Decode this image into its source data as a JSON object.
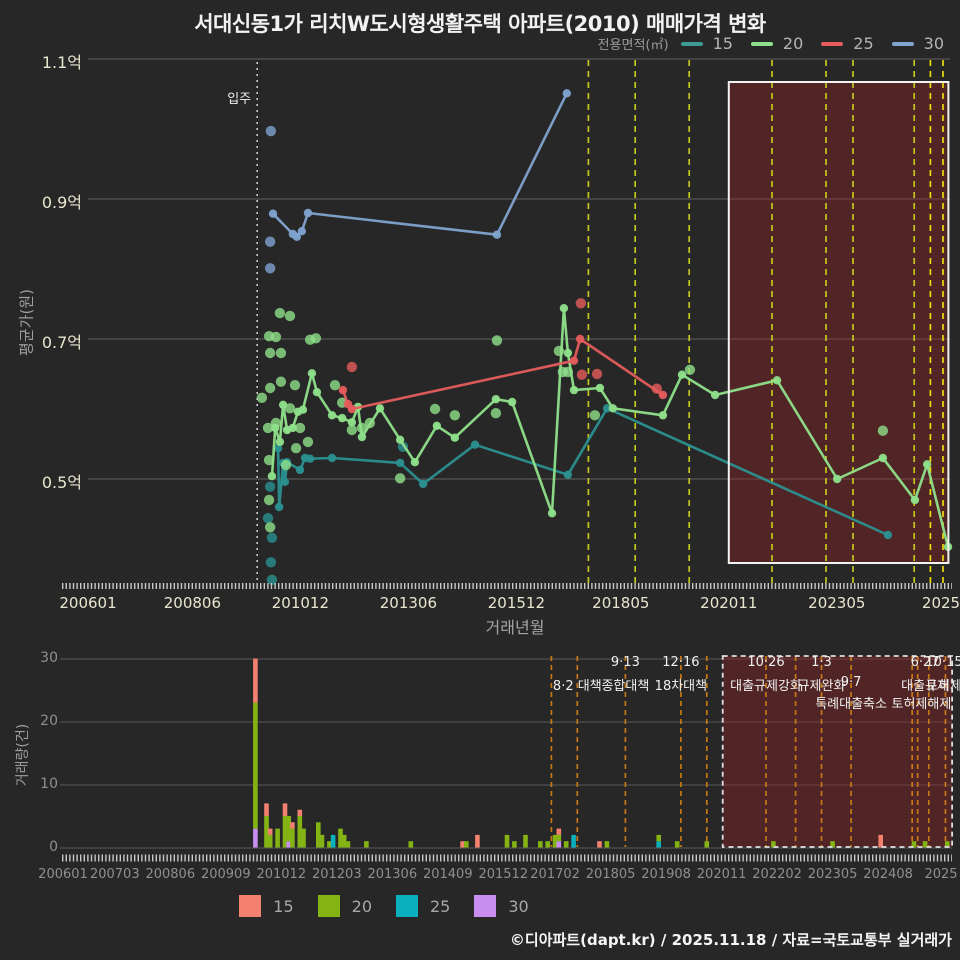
{
  "title": "서대신동1가 리치W도시형생활주택 아파트(2010) 매매가격 변화",
  "footer": "©디아파트(dapt.kr) / 2025.11.18 / 자료=국토교통부 실거래가",
  "legend_top": {
    "label": "전용면적(㎡)",
    "items": [
      {
        "label": "15",
        "color": "#3f9a95"
      },
      {
        "label": "20",
        "color": "#8fe08a"
      },
      {
        "label": "25",
        "color": "#e65c5c"
      },
      {
        "label": "30",
        "color": "#80a3cf"
      }
    ]
  },
  "legend_bottom": {
    "items": [
      {
        "label": "15",
        "color": "#f4806f"
      },
      {
        "label": "20",
        "color": "#84b414"
      },
      {
        "label": "25",
        "color": "#0ab0bd"
      },
      {
        "label": "30",
        "color": "#c78ef0"
      }
    ]
  },
  "chart_data": [
    {
      "type": "line",
      "title": "서대신동1가 리치W도시형생활주택 아파트(2010) 매매가격 변화",
      "xlabel": "거래년월",
      "ylabel": "평균가(원)",
      "x_unit": "months since 2006-01",
      "ylim": [
        0.38,
        1.12
      ],
      "grid": true,
      "y_ticks": [
        {
          "label": "1.1억",
          "v": 1.1
        },
        {
          "label": "0.9억",
          "v": 0.9
        },
        {
          "label": "0.7억",
          "v": 0.7
        },
        {
          "label": "0.5억",
          "v": 0.5
        }
      ],
      "x_ticks": [
        {
          "label": "200601",
          "m": 0
        },
        {
          "label": "200806",
          "m": 29
        },
        {
          "label": "201012",
          "m": 59
        },
        {
          "label": "201306",
          "m": 89
        },
        {
          "label": "201512",
          "m": 119
        },
        {
          "label": "201805",
          "m": 148
        },
        {
          "label": "202011",
          "m": 178
        },
        {
          "label": "202305",
          "m": 208
        },
        {
          "label": "2025",
          "m": 238
        }
      ],
      "move_in": {
        "label": "입주",
        "m": 47
      },
      "policy_lines": [
        {
          "m": 139,
          "bright": false
        },
        {
          "m": 152,
          "bright": false
        },
        {
          "m": 167,
          "bright": false
        },
        {
          "m": 190,
          "bright": false
        },
        {
          "m": 205,
          "bright": false
        },
        {
          "m": 212.5,
          "bright": false
        },
        {
          "m": 229.5,
          "bright": false
        },
        {
          "m": 234,
          "bright": true
        },
        {
          "m": 237.5,
          "bright": true
        }
      ],
      "highlight_box": {
        "m0": 178,
        "m1": 239
      },
      "series": [
        {
          "name": "30",
          "color": "#80a3cf",
          "line": [
            [
              51.4,
              0.879
            ],
            [
              56.9,
              0.85
            ],
            [
              58,
              0.846
            ],
            [
              59.4,
              0.854
            ],
            [
              61.1,
              0.88
            ],
            [
              113.6,
              0.849
            ],
            [
              133,
              1.051
            ]
          ],
          "scatter": [
            [
              50.8,
              0.997
            ],
            [
              50.6,
              0.839
            ],
            [
              50.6,
              0.801
            ]
          ]
        },
        {
          "name": "15",
          "color": "#2b9090",
          "line": [
            [
              52.8,
              0.544
            ],
            [
              53.1,
              0.46
            ],
            [
              54.2,
              0.523
            ],
            [
              54.7,
              0.496
            ],
            [
              55.3,
              0.524
            ],
            [
              58.9,
              0.513
            ],
            [
              60.3,
              0.53
            ],
            [
              61.7,
              0.529
            ],
            [
              67.8,
              0.53
            ],
            [
              86.7,
              0.523
            ],
            [
              93.1,
              0.493
            ],
            [
              107.5,
              0.549
            ],
            [
              133.3,
              0.506
            ],
            [
              144.2,
              0.601
            ],
            [
              222.2,
              0.42
            ]
          ],
          "scatter": [
            [
              50,
              0.444
            ],
            [
              50.6,
              0.489
            ],
            [
              51.1,
              0.416
            ],
            [
              50.8,
              0.381
            ],
            [
              51.1,
              0.356
            ],
            [
              87.5,
              0.546
            ]
          ]
        },
        {
          "name": "20",
          "color": "#8fe08a",
          "line": [
            [
              51.1,
              0.504
            ],
            [
              52,
              0.573
            ],
            [
              53.3,
              0.553
            ],
            [
              54.2,
              0.606
            ],
            [
              55.3,
              0.57
            ],
            [
              56.9,
              0.573
            ],
            [
              58.3,
              0.596
            ],
            [
              59.7,
              0.599
            ],
            [
              62.2,
              0.651
            ],
            [
              63.6,
              0.624
            ],
            [
              67.8,
              0.591
            ],
            [
              70.6,
              0.587
            ],
            [
              73.3,
              0.581
            ],
            [
              75,
              0.603
            ],
            [
              76.1,
              0.56
            ],
            [
              81.1,
              0.601
            ],
            [
              86.7,
              0.556
            ],
            [
              90.8,
              0.524
            ],
            [
              96.9,
              0.576
            ],
            [
              101.9,
              0.559
            ],
            [
              113.3,
              0.614
            ],
            [
              117.8,
              0.61
            ],
            [
              128.9,
              0.451
            ],
            [
              132.2,
              0.744
            ],
            [
              133.3,
              0.68
            ],
            [
              135,
              0.627
            ],
            [
              142.2,
              0.63
            ],
            [
              145.8,
              0.601
            ],
            [
              159.7,
              0.591
            ],
            [
              165,
              0.649
            ],
            [
              174.2,
              0.62
            ],
            [
              191.4,
              0.641
            ],
            [
              208.1,
              0.5
            ],
            [
              220.8,
              0.53
            ],
            [
              229.7,
              0.47
            ],
            [
              233.1,
              0.521
            ],
            [
              238.9,
              0.403
            ]
          ],
          "scatter": [
            [
              48.3,
              0.616
            ],
            [
              50,
              0.573
            ],
            [
              50.3,
              0.704
            ],
            [
              52.2,
              0.703
            ],
            [
              53.3,
              0.737
            ],
            [
              56.1,
              0.733
            ],
            [
              50.6,
              0.68
            ],
            [
              53.6,
              0.68
            ],
            [
              61.7,
              0.699
            ],
            [
              63.3,
              0.701
            ],
            [
              50.6,
              0.63
            ],
            [
              53.6,
              0.639
            ],
            [
              57.5,
              0.634
            ],
            [
              56.1,
              0.601
            ],
            [
              58.9,
              0.573
            ],
            [
              61.1,
              0.553
            ],
            [
              57.8,
              0.544
            ],
            [
              52.2,
              0.58
            ],
            [
              55,
              0.52
            ],
            [
              50.3,
              0.527
            ],
            [
              50.3,
              0.47
            ],
            [
              50.6,
              0.431
            ],
            [
              68.6,
              0.634
            ],
            [
              70.6,
              0.609
            ],
            [
              73.3,
              0.57
            ],
            [
              76.1,
              0.573
            ],
            [
              78.3,
              0.58
            ],
            [
              86.7,
              0.501
            ],
            [
              96.4,
              0.6
            ],
            [
              101.9,
              0.591
            ],
            [
              113.3,
              0.594
            ],
            [
              113.6,
              0.698
            ],
            [
              130.8,
              0.683
            ],
            [
              131.9,
              0.653
            ],
            [
              133.3,
              0.653
            ],
            [
              140.8,
              0.591
            ],
            [
              167.2,
              0.656
            ],
            [
              220.8,
              0.569
            ]
          ]
        },
        {
          "name": "25",
          "color": "#e65c5c",
          "line": [
            [
              70.8,
              0.627
            ],
            [
              72.2,
              0.607
            ],
            [
              73.3,
              0.6
            ],
            [
              135,
              0.669
            ],
            [
              136.7,
              0.7
            ],
            [
              159.7,
              0.62
            ]
          ],
          "scatter": [
            [
              73.3,
              0.66
            ],
            [
              136.9,
              0.751
            ],
            [
              137.2,
              0.649
            ],
            [
              141.4,
              0.65
            ],
            [
              158,
              0.629
            ]
          ]
        }
      ]
    },
    {
      "type": "bar",
      "ylabel": "거래량(건)",
      "ylim": [
        0,
        30
      ],
      "y_ticks": [
        {
          "label": "0",
          "v": 0
        },
        {
          "label": "10",
          "v": 10
        },
        {
          "label": "20",
          "v": 20
        },
        {
          "label": "30",
          "v": 30
        }
      ],
      "x_ticks": [
        {
          "label": "200601",
          "m": 0
        },
        {
          "label": "200703",
          "m": 14
        },
        {
          "label": "200806",
          "m": 29
        },
        {
          "label": "200909",
          "m": 44
        },
        {
          "label": "201012",
          "m": 59
        },
        {
          "label": "201203",
          "m": 74
        },
        {
          "label": "201306",
          "m": 89
        },
        {
          "label": "201409",
          "m": 104
        },
        {
          "label": "201512",
          "m": 119
        },
        {
          "label": "201702",
          "m": 133
        },
        {
          "label": "201805",
          "m": 148
        },
        {
          "label": "201908",
          "m": 163
        },
        {
          "label": "202011",
          "m": 178
        },
        {
          "label": "202202",
          "m": 193
        },
        {
          "label": "202305",
          "m": 208
        },
        {
          "label": "202408",
          "m": 223
        },
        {
          "label": "2025",
          "m": 238
        }
      ],
      "stack_order": [
        "30",
        "25",
        "20",
        "15"
      ],
      "colors": {
        "15": "#f4806f",
        "20": "#84b414",
        "25": "#0ab0bd",
        "30": "#c78ef0"
      },
      "policy_lines": [
        {
          "m": 132
        },
        {
          "m": 139
        },
        {
          "m": 152
        },
        {
          "m": 167
        },
        {
          "m": 174
        },
        {
          "m": 190
        },
        {
          "m": 198
        },
        {
          "m": 205
        },
        {
          "m": 213
        },
        {
          "m": 229.5
        },
        {
          "m": 231
        },
        {
          "m": 234
        },
        {
          "m": 238.5
        }
      ],
      "highlight_box": {
        "m0": 178.3,
        "m1": 240.3
      },
      "annotations": [
        {
          "m": 139,
          "date": "",
          "label": "8·2 대책",
          "label2": ""
        },
        {
          "m": 152,
          "date": "9·13",
          "label": "종합대책",
          "label2": ""
        },
        {
          "m": 167,
          "date": "12·16",
          "label": "18차대책",
          "label2": ""
        },
        {
          "m": 190,
          "date": "10·26",
          "label": "대출규제강화",
          "label2": ""
        },
        {
          "m": 205,
          "date": "1·3",
          "label": "규제완화",
          "label2": ""
        },
        {
          "m": 213,
          "date": "",
          "label": "9·7",
          "label2": "특례대출축소"
        },
        {
          "m": 232,
          "date": "",
          "label": "",
          "label2": "토허제해제"
        },
        {
          "m": 233,
          "date": "6·27",
          "label": "대출규제",
          "label2": ""
        },
        {
          "m": 238.5,
          "date": "10·15",
          "label": "토허제",
          "label2": ""
        }
      ],
      "bars": [
        {
          "m": 52,
          "c": {
            "15": 7,
            "20": 20,
            "30": 3
          }
        },
        {
          "m": 55,
          "c": {
            "15": 2,
            "20": 5
          }
        },
        {
          "m": 56,
          "c": {
            "15": 1,
            "20": 2
          }
        },
        {
          "m": 58,
          "c": {
            "20": 3
          }
        },
        {
          "m": 60,
          "c": {
            "15": 2,
            "20": 5
          }
        },
        {
          "m": 61,
          "c": {
            "20": 4,
            "30": 1
          }
        },
        {
          "m": 62,
          "c": {
            "15": 1,
            "20": 3
          }
        },
        {
          "m": 64,
          "c": {
            "15": 1,
            "20": 5
          }
        },
        {
          "m": 65,
          "c": {
            "20": 3
          }
        },
        {
          "m": 69,
          "c": {
            "20": 4
          }
        },
        {
          "m": 70,
          "c": {
            "20": 2
          }
        },
        {
          "m": 72,
          "c": {
            "20": 1
          }
        },
        {
          "m": 73,
          "c": {
            "25": 2
          }
        },
        {
          "m": 75,
          "c": {
            "20": 3
          }
        },
        {
          "m": 76,
          "c": {
            "20": 2
          }
        },
        {
          "m": 77,
          "c": {
            "20": 1
          }
        },
        {
          "m": 82,
          "c": {
            "20": 1
          }
        },
        {
          "m": 94,
          "c": {
            "20": 1
          }
        },
        {
          "m": 108,
          "c": {
            "15": 1
          }
        },
        {
          "m": 109,
          "c": {
            "20": 1
          }
        },
        {
          "m": 112,
          "c": {
            "15": 2
          }
        },
        {
          "m": 120,
          "c": {
            "20": 2
          }
        },
        {
          "m": 122,
          "c": {
            "20": 1
          }
        },
        {
          "m": 125,
          "c": {
            "20": 2
          }
        },
        {
          "m": 129,
          "c": {
            "20": 1
          }
        },
        {
          "m": 131,
          "c": {
            "20": 1
          }
        },
        {
          "m": 133,
          "c": {
            "20": 2
          }
        },
        {
          "m": 134,
          "c": {
            "15": 1,
            "20": 1,
            "30": 1
          }
        },
        {
          "m": 136,
          "c": {
            "20": 1
          }
        },
        {
          "m": 138,
          "c": {
            "25": 2
          }
        },
        {
          "m": 145,
          "c": {
            "15": 1
          }
        },
        {
          "m": 147,
          "c": {
            "20": 1
          }
        },
        {
          "m": 161,
          "c": {
            "20": 1,
            "25": 1
          }
        },
        {
          "m": 166,
          "c": {
            "20": 1
          }
        },
        {
          "m": 174,
          "c": {
            "20": 1
          }
        },
        {
          "m": 192,
          "c": {
            "20": 1
          }
        },
        {
          "m": 208,
          "c": {
            "20": 1
          }
        },
        {
          "m": 221,
          "c": {
            "15": 2
          }
        },
        {
          "m": 230,
          "c": {
            "20": 1
          }
        },
        {
          "m": 233,
          "c": {
            "20": 1
          }
        },
        {
          "m": 239,
          "c": {
            "20": 1
          }
        }
      ]
    }
  ],
  "style_colors": {
    "background": "#272727",
    "grid": "#616161",
    "policy_yellow": "#c3c81c",
    "policy_yellow_bright": "#ecdc05",
    "policy_orange": "#c67817",
    "highlight_fill": "rgba(150,34,34,0.38)",
    "box_border": "#f2f2f2",
    "move_in_line": "#d8d8d8"
  }
}
